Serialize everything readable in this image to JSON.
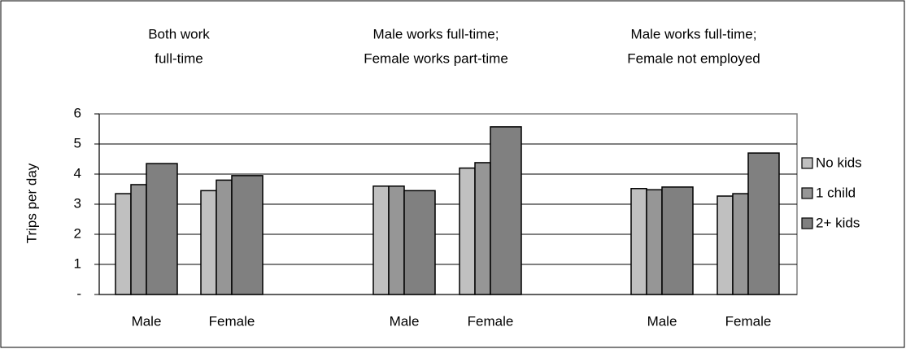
{
  "chart_data": {
    "type": "bar",
    "groups": [
      {
        "title": [
          "Both work",
          "full-time"
        ]
      },
      {
        "title": [
          "Male works full-time;",
          "Female works part-time"
        ]
      },
      {
        "title": [
          "Male works full-time;",
          "Female not employed"
        ]
      }
    ],
    "categories": [
      "Male",
      "Female",
      "Male",
      "Female",
      "Male",
      "Female"
    ],
    "series": [
      {
        "name": "No kids",
        "color": "#c0c0c0",
        "values": [
          3.35,
          3.45,
          3.6,
          4.2,
          3.52,
          3.27
        ]
      },
      {
        "name": "1 child",
        "color": "#969696",
        "values": [
          3.65,
          3.8,
          3.6,
          4.38,
          3.48,
          3.35
        ]
      },
      {
        "name": "2+ kids",
        "color": "#808080",
        "values": [
          4.35,
          3.95,
          3.45,
          5.57,
          3.57,
          4.7
        ]
      }
    ],
    "ylabel": "Trips per day",
    "ylim": [
      0,
      6
    ],
    "yticks": [
      {
        "value": 0,
        "label": "-"
      },
      1,
      2,
      3,
      4,
      5,
      6
    ],
    "grid": true,
    "legend": "right"
  }
}
